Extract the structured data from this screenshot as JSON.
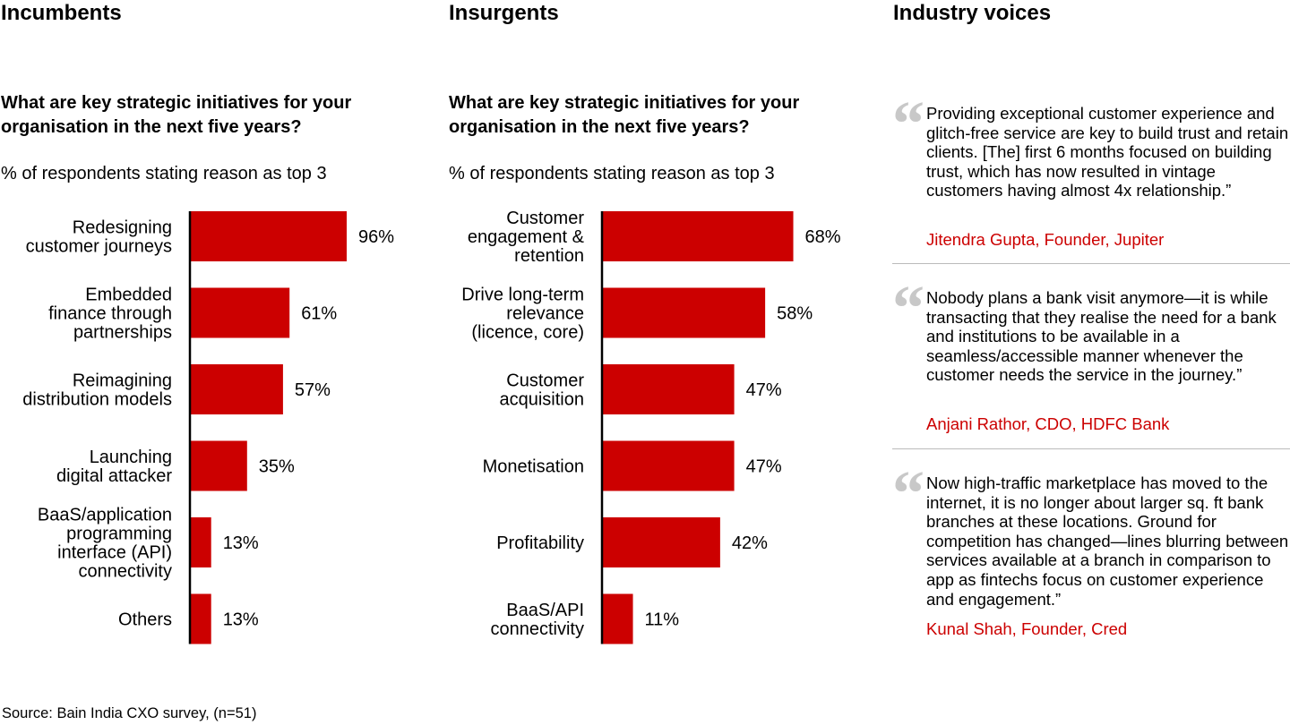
{
  "colors": {
    "bar": "#cc0000",
    "axis": "#000000",
    "author": "#cc0000",
    "quote_mark": "#c8c8c8",
    "divider": "#bbbbbb"
  },
  "incumbents": {
    "title": "Incumbents",
    "question": "What are key strategic initiatives for your organisation in the next five years?",
    "subtitle": "% of respondents stating reason as top 3"
  },
  "insurgents": {
    "title": "Insurgents",
    "question": "What are key strategic initiatives for your organisation in the next five years?",
    "subtitle": "% of respondents stating reason as top 3"
  },
  "voices": {
    "title": "Industry voices",
    "quote_icon": "quote-open-icon",
    "quotes": [
      {
        "text": "Providing exceptional customer experience and glitch-free service are key to build trust and retain clients. [The] first 6 months focused on building trust, which has now resulted in vintage customers having almost 4x relationship.”",
        "author": "Jitendra Gupta, Founder, Jupiter"
      },
      {
        "text": "Nobody plans a bank visit anymore—it is while transacting that they realise the need for a bank and institutions to be available in a seamless/accessible manner whenever the customer needs the service in the journey.”",
        "author": "Anjani Rathor, CDO, HDFC Bank"
      },
      {
        "text": "Now high-traffic marketplace has moved to the internet, it is no longer about larger sq. ft bank branches at these locations. Ground for competition has changed—lines blurring between services available at a branch in comparison to app as fintechs focus on customer experience and engagement.”",
        "author": "Kunal Shah, Founder, Cred"
      }
    ]
  },
  "source": "Source: Bain India CXO survey, (n=51)",
  "chart_data": [
    {
      "type": "bar",
      "orientation": "horizontal",
      "title": "Incumbents",
      "subtitle": "What are key strategic initiatives for your organisation in the next five years?",
      "ylabel": "% of respondents stating reason as top 3",
      "xlabel": "",
      "xlim": [
        0,
        100
      ],
      "grid": false,
      "legend": "none",
      "categories": [
        [
          "Redesigning",
          "customer journeys"
        ],
        [
          "Embedded",
          "finance through",
          "partnerships"
        ],
        [
          "Reimagining",
          "distribution models"
        ],
        [
          "Launching",
          "digital attacker"
        ],
        [
          "BaaS/application",
          "programming",
          "interface (API)",
          "connectivity"
        ],
        [
          "Others"
        ]
      ],
      "values": [
        96,
        61,
        57,
        35,
        13,
        13
      ],
      "value_labels": [
        "96%",
        "61%",
        "57%",
        "35%",
        "13%",
        "13%"
      ]
    },
    {
      "type": "bar",
      "orientation": "horizontal",
      "title": "Insurgents",
      "subtitle": "What are key strategic initiatives for your organisation in the next five years?",
      "ylabel": "% of respondents stating reason as top 3",
      "xlabel": "",
      "xlim": [
        0,
        100
      ],
      "grid": false,
      "legend": "none",
      "categories": [
        [
          "Customer",
          "engagement &",
          "retention"
        ],
        [
          "Drive long-term",
          "relevance",
          "(licence, core)"
        ],
        [
          "Customer",
          "acquisition"
        ],
        [
          "Monetisation"
        ],
        [
          "Profitability"
        ],
        [
          "BaaS/API",
          "connectivity"
        ]
      ],
      "values": [
        68,
        58,
        47,
        47,
        42,
        11
      ],
      "value_labels": [
        "68%",
        "58%",
        "47%",
        "47%",
        "42%",
        "11%"
      ]
    }
  ]
}
